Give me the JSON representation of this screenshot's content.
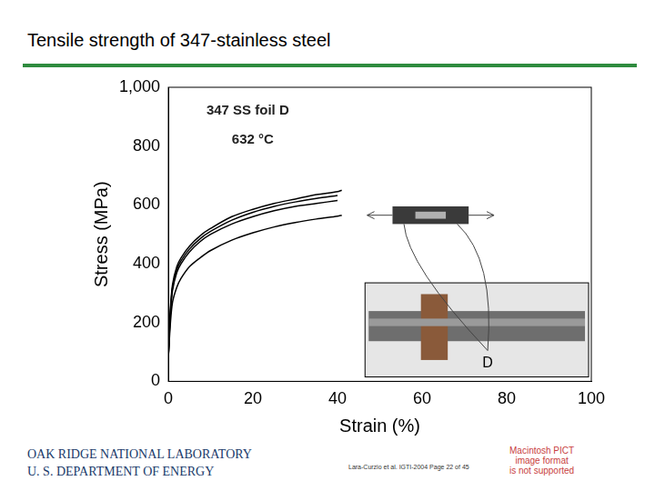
{
  "title": "Tensile strength of 347-stainless steel",
  "chart_data": {
    "type": "line",
    "x_label": "Strain (%)",
    "y_label": "Stress (MPa)",
    "annotations": [
      "347 SS foil D",
      "632 °C"
    ],
    "inset_label": "D",
    "x": [
      0,
      0.5,
      1,
      2,
      3,
      5,
      7.5,
      10,
      15,
      20,
      25,
      30,
      35,
      40,
      41
    ],
    "series": [
      {
        "color": "#000000",
        "values": [
          80,
          250,
          330,
          390,
          420,
          460,
          495,
          520,
          560,
          585,
          605,
          620,
          635,
          645,
          650
        ]
      },
      {
        "color": "#000000",
        "values": [
          80,
          240,
          320,
          380,
          410,
          450,
          485,
          510,
          548,
          575,
          595,
          610,
          622,
          632,
          null
        ]
      },
      {
        "color": "#000000",
        "values": [
          80,
          230,
          310,
          370,
          400,
          440,
          475,
          500,
          535,
          560,
          580,
          595,
          605,
          615,
          null
        ]
      },
      {
        "color": "#000000",
        "values": [
          80,
          200,
          270,
          320,
          350,
          390,
          420,
          445,
          480,
          505,
          525,
          540,
          552,
          562,
          565
        ]
      }
    ],
    "xlim": [
      0,
      100
    ],
    "ylim": [
      0,
      1000
    ],
    "xticks": [
      0,
      20,
      40,
      60,
      80,
      100
    ],
    "yticks": [
      0,
      200,
      400,
      600,
      800,
      1000
    ],
    "grid": false
  },
  "footer": {
    "organization": [
      "OAK RIDGE NATIONAL LABORATORY",
      "U. S. DEPARTMENT OF ENERGY"
    ],
    "citation": "Lara-Curzio et al. IGTI-2004 Page 22 of 45",
    "image_notice": [
      "Macintosh PICT",
      "image format",
      "is not supported"
    ]
  }
}
